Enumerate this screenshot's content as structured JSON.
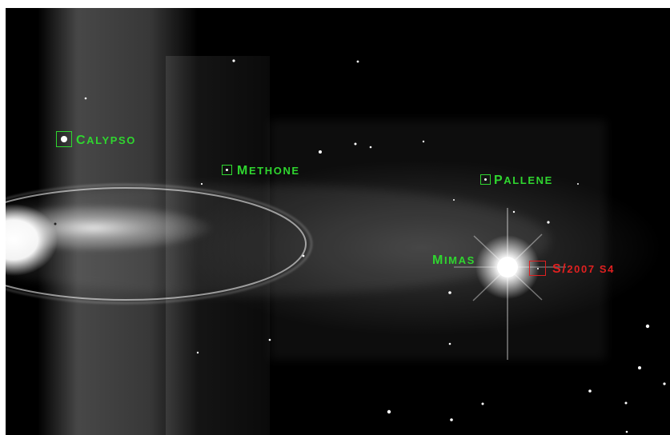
{
  "image": {
    "subject": "saturn-moons-ring-photo",
    "label_color": "#2fd62f",
    "highlight_color": "#e02020"
  },
  "moons": {
    "calypso": "Calypso",
    "methone": "Methone",
    "pallene": "Pallene",
    "mimas": "Mimas",
    "s2007s4": "S/2007 S4"
  }
}
